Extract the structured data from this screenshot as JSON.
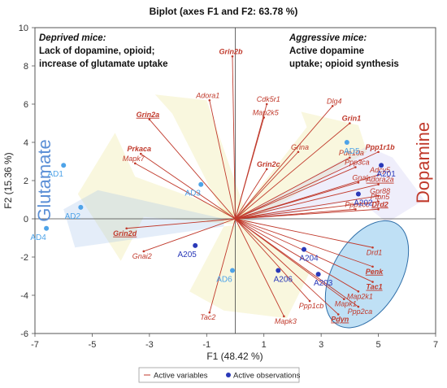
{
  "chart_data": {
    "type": "scatter",
    "title": "Biplot (axes F1 and F2: 63.78 %)",
    "xlabel": "F1 (48.42 %)",
    "ylabel": "F2 (15.36 %)",
    "xlim": [
      -7,
      7
    ],
    "ylim": [
      -6,
      10
    ],
    "xticks": [
      -7,
      -5,
      -3,
      -1,
      1,
      3,
      5,
      7
    ],
    "yticks": [
      -6,
      -4,
      -2,
      0,
      2,
      4,
      6,
      8,
      10
    ],
    "grid": false,
    "legend_position": "bottom",
    "legend": [
      {
        "label": "Active variables",
        "marker": "line"
      },
      {
        "label": "Active observations",
        "marker": "dot"
      }
    ],
    "colors": {
      "variable": "#c0392b",
      "obs_dark": "#2a39b8",
      "obs_light": "#4ea3e8",
      "glutamate": "#5b8fd6",
      "dopamine": "#c0392b",
      "ellipse_fill": "#a9d6f2",
      "ellipse_stroke": "#2e6ea8"
    },
    "variables": [
      {
        "name": "Grin2b",
        "x": -0.1,
        "y": 8.5,
        "bold": true
      },
      {
        "name": "Adora1",
        "x": -0.9,
        "y": 6.2
      },
      {
        "name": "Cdk5r1",
        "x": 1.1,
        "y": 6.0
      },
      {
        "name": "Dlg4",
        "x": 3.4,
        "y": 5.9
      },
      {
        "name": "Map2k5",
        "x": 1.0,
        "y": 5.3
      },
      {
        "name": "Grin2a",
        "x": -3.0,
        "y": 5.2,
        "bold": true,
        "underline": true
      },
      {
        "name": "Grin1",
        "x": 4.0,
        "y": 5.0,
        "bold": true
      },
      {
        "name": "Prkaca",
        "x": -3.3,
        "y": 3.4,
        "bold": true
      },
      {
        "name": "Grina",
        "x": 2.2,
        "y": 3.5
      },
      {
        "name": "Pde10a",
        "x": 4.0,
        "y": 3.2
      },
      {
        "name": "Ppp1r1b",
        "x": 5.0,
        "y": 3.5,
        "bold": true
      },
      {
        "name": "Ppp3ca",
        "x": 4.2,
        "y": 2.7
      },
      {
        "name": "Mapk7",
        "x": -3.5,
        "y": 2.9
      },
      {
        "name": "Grin2c",
        "x": 1.1,
        "y": 2.6,
        "bold": true
      },
      {
        "name": "Adcy5",
        "x": 5.0,
        "y": 2.3
      },
      {
        "name": "Gnal",
        "x": 4.3,
        "y": 1.9
      },
      {
        "name": "Adora2a",
        "x": 5.0,
        "y": 1.8,
        "underline": true
      },
      {
        "name": "Gpr88",
        "x": 5.0,
        "y": 1.2
      },
      {
        "name": "Ptpn5",
        "x": 5.0,
        "y": 0.9
      },
      {
        "name": "Drd2",
        "x": 5.0,
        "y": 0.5,
        "bold": true,
        "underline": true
      },
      {
        "name": "Ppp1cc",
        "x": 4.2,
        "y": 0.5
      },
      {
        "name": "Grin2d",
        "x": -3.8,
        "y": -0.5,
        "bold": true,
        "underline": true
      },
      {
        "name": "Gnai2",
        "x": -3.2,
        "y": -1.7
      },
      {
        "name": "Drd1",
        "x": 4.8,
        "y": -1.5
      },
      {
        "name": "Penk",
        "x": 4.8,
        "y": -2.5,
        "bold": true,
        "underline": true
      },
      {
        "name": "Tac1",
        "x": 4.8,
        "y": -3.3,
        "bold": true,
        "underline": true
      },
      {
        "name": "Map2k1",
        "x": 4.3,
        "y": -3.8
      },
      {
        "name": "Mapk1",
        "x": 3.8,
        "y": -4.2
      },
      {
        "name": "Ppp2ca",
        "x": 4.3,
        "y": -4.6
      },
      {
        "name": "Ppp1cb",
        "x": 2.6,
        "y": -4.3
      },
      {
        "name": "Pdyn",
        "x": 3.6,
        "y": -5.0,
        "bold": true,
        "underline": true
      },
      {
        "name": "Mapk3",
        "x": 1.7,
        "y": -5.1
      },
      {
        "name": "Tac2",
        "x": -0.9,
        "y": -4.9
      }
    ],
    "observations": [
      {
        "name": "AD1",
        "x": -6.0,
        "y": 2.8,
        "shade": "light"
      },
      {
        "name": "AD2",
        "x": -5.4,
        "y": 0.6,
        "shade": "light"
      },
      {
        "name": "AD4",
        "x": -6.6,
        "y": -0.5,
        "shade": "light"
      },
      {
        "name": "AD3",
        "x": -1.2,
        "y": 1.8,
        "shade": "light"
      },
      {
        "name": "A205",
        "x": -1.4,
        "y": -1.4,
        "shade": "dark"
      },
      {
        "name": "AD6",
        "x": -0.1,
        "y": -2.7,
        "shade": "light"
      },
      {
        "name": "A204",
        "x": 2.4,
        "y": -1.6,
        "shade": "dark"
      },
      {
        "name": "A206",
        "x": 1.5,
        "y": -2.7,
        "shade": "dark"
      },
      {
        "name": "A203",
        "x": 2.9,
        "y": -2.9,
        "shade": "dark"
      },
      {
        "name": "AD5",
        "x": 3.9,
        "y": 4.0,
        "shade": "light"
      },
      {
        "name": "A201",
        "x": 5.1,
        "y": 2.8,
        "shade": "dark"
      },
      {
        "name": "A202",
        "x": 4.3,
        "y": 1.3,
        "shade": "dark"
      }
    ],
    "annotations": {
      "deprived_title": "Deprived mice:",
      "deprived_line1": "Lack of dopamine, opioid;",
      "deprived_line2": "increase of glutamate uptake",
      "aggressive_title": "Aggressive mice:",
      "aggressive_line1": "Active dopamine",
      "aggressive_line2": "uptake; opioid synthesis",
      "glutamate": "Glutamate",
      "dopamine": "Dopamine"
    }
  }
}
